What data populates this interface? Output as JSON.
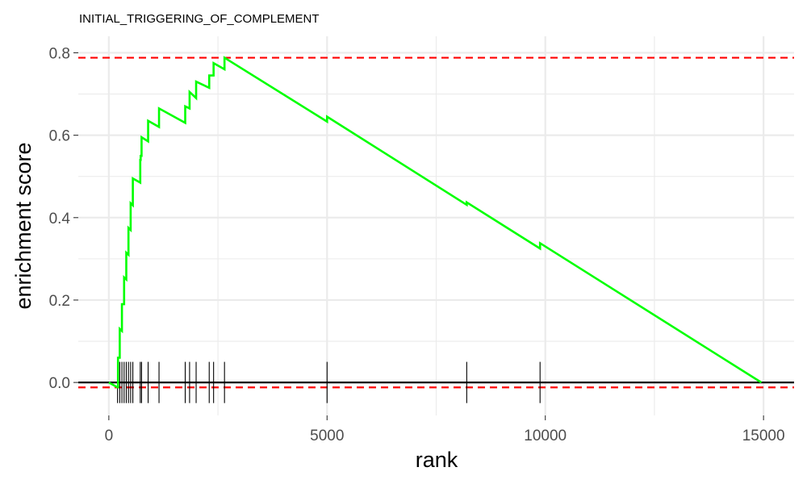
{
  "chart_data": {
    "type": "line",
    "title": "INITIAL_TRIGGERING_OF_COMPLEMENT",
    "xlabel": "rank",
    "ylabel": "enrichment score",
    "xlim": [
      -700,
      15700
    ],
    "ylim": [
      -0.08,
      0.84
    ],
    "x_ticks": [
      0,
      5000,
      10000,
      15000
    ],
    "x_tick_labels": [
      "0",
      "5000",
      "10000",
      "15000"
    ],
    "y_ticks": [
      0.0,
      0.2,
      0.4,
      0.6,
      0.8
    ],
    "y_tick_labels": [
      "0.0",
      "0.2",
      "0.4",
      "0.6",
      "0.8"
    ],
    "grid": true,
    "series": [
      {
        "color": "#00ff00",
        "x": [
          0,
          200,
          210,
          210,
          250,
          250,
          300,
          300,
          350,
          350,
          400,
          400,
          450,
          450,
          500,
          500,
          550,
          550,
          720,
          720,
          730,
          730,
          750,
          750,
          900,
          900,
          1150,
          1150,
          1750,
          1750,
          1850,
          1850,
          2000,
          2000,
          2300,
          2300,
          2400,
          2400,
          2650,
          2650,
          5000,
          5000,
          8200,
          8200,
          9880,
          9880,
          14950
        ],
        "y": [
          0.0,
          -0.012,
          -0.012,
          0.06,
          0.06,
          0.13,
          0.125,
          0.19,
          0.19,
          0.255,
          0.25,
          0.315,
          0.31,
          0.375,
          0.37,
          0.435,
          0.43,
          0.495,
          0.485,
          0.54,
          0.54,
          0.55,
          0.55,
          0.595,
          0.585,
          0.635,
          0.62,
          0.665,
          0.63,
          0.67,
          0.665,
          0.705,
          0.69,
          0.73,
          0.715,
          0.745,
          0.745,
          0.775,
          0.76,
          0.788,
          0.633,
          0.645,
          0.431,
          0.437,
          0.325,
          0.338,
          0.0
        ]
      }
    ],
    "hit_ranks": [
      200,
      250,
      300,
      350,
      400,
      450,
      500,
      550,
      720,
      750,
      900,
      1150,
      1750,
      1850,
      2000,
      2300,
      2400,
      2650,
      5000,
      8200,
      9880
    ],
    "reference_lines": [
      {
        "y": 0.788,
        "style": "dashed",
        "color": "#ff0000"
      },
      {
        "y": -0.012,
        "style": "dashed",
        "color": "#ff0000"
      },
      {
        "y": 0.0,
        "style": "solid",
        "color": "#000000"
      }
    ],
    "colors": {
      "curve": "#00ff00",
      "reference": "#ff0000",
      "hits": "#000000",
      "grid": "#ebebeb",
      "tick_label": "#4d4d4d"
    }
  }
}
